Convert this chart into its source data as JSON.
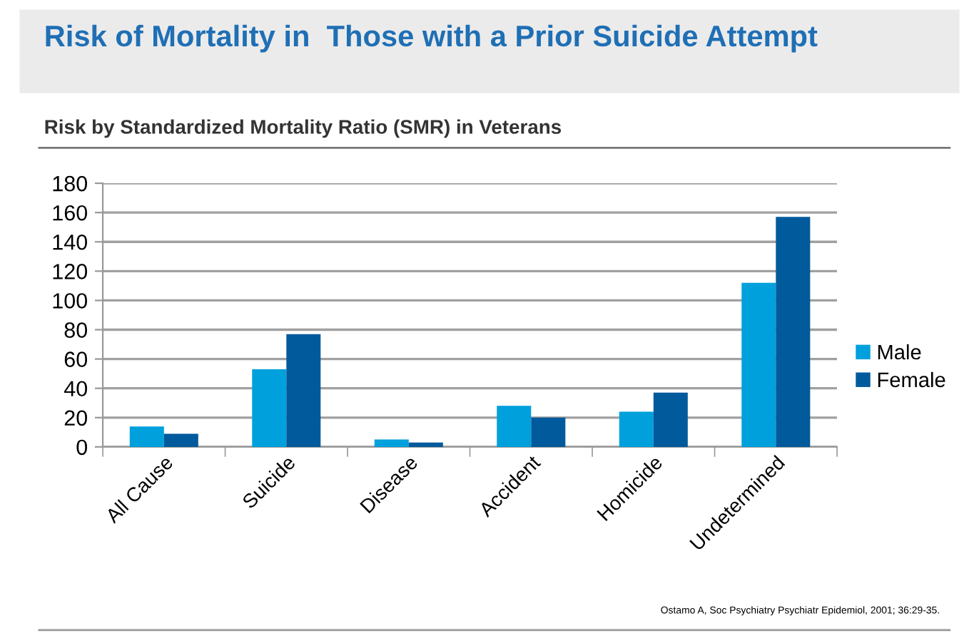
{
  "chart_data": {
    "type": "bar",
    "title": "Risk of Mortality in  Those with a Prior Suicide Attempt",
    "subtitle": "Risk by Standardized Mortality Ratio (SMR) in Veterans",
    "categories": [
      "All Cause",
      "Suicide",
      "Disease",
      "Accident",
      "Homicide",
      "Undetermined"
    ],
    "series": [
      {
        "name": "Male",
        "color": "#00a0dc",
        "values": [
          14,
          53,
          5,
          28,
          24,
          112
        ]
      },
      {
        "name": "Female",
        "color": "#005a9c",
        "values": [
          9,
          77,
          3,
          20,
          37,
          157
        ]
      }
    ],
    "ylim": [
      0,
      180
    ],
    "yticks": [
      0,
      20,
      40,
      60,
      80,
      100,
      120,
      140,
      160,
      180
    ],
    "grid": "y",
    "legend": "right",
    "annotations": [
      "Ostamo A, Soc Psychiatry Psychiatr Epidemiol, 2001; 36:29-35."
    ]
  }
}
